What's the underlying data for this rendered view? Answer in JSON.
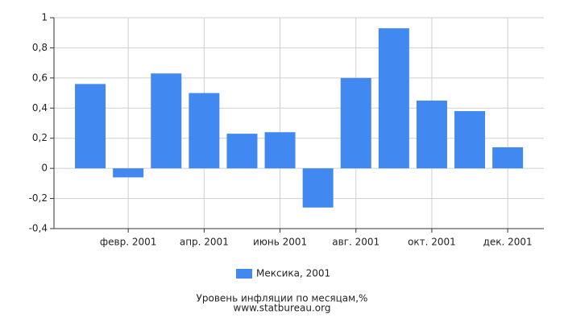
{
  "chart_data": {
    "type": "bar",
    "title": "Уровень инфляции по месяцам,%",
    "subtitle": "www.statbureau.org",
    "categories": [
      null,
      "февр. 2001",
      null,
      "апр. 2001",
      null,
      "июнь 2001",
      null,
      "авг. 2001",
      null,
      "окт. 2001",
      null,
      "дек. 2001"
    ],
    "series": [
      {
        "name": "Мексика, 2001",
        "color": "#4189f0",
        "values": [
          0.56,
          -0.06,
          0.63,
          0.5,
          0.23,
          0.24,
          -0.26,
          0.6,
          0.93,
          0.45,
          0.38,
          0.14
        ]
      }
    ],
    "ylim": [
      -0.4,
      1
    ],
    "yticks": [
      {
        "value": -0.4,
        "label": "-0,4"
      },
      {
        "value": -0.2,
        "label": "-0,2"
      },
      0,
      {
        "value": 0.2,
        "label": "0,2"
      },
      {
        "value": 0.4,
        "label": "0,4"
      },
      {
        "value": 0.6,
        "label": "0,6"
      },
      {
        "value": 0.8,
        "label": "0,8"
      },
      1
    ],
    "grid": true,
    "legend": "bottom"
  }
}
